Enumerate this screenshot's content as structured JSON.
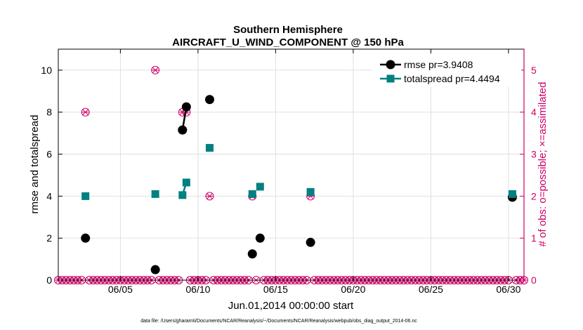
{
  "chart_data": {
    "type": "scatter",
    "title_line1": "Southern Hemisphere",
    "title_line2": "AIRCRAFT_U_WIND_COMPONENT @ 150 hPa",
    "xlabel": "Jun.01,2014 00:00:00 start",
    "ylabel_left": "rmse and totalspread",
    "ylabel_right": "# of obs: o=possible; ×=assimilated",
    "footnote": "data file: /Users/gharamti/Documents/NCAR/Reanalysis/~/Documents/NCAR/Reanalysis/webpub/obs_diag_output_2014-06.nc",
    "xlim": [
      1,
      31
    ],
    "ylim_left": [
      0,
      11
    ],
    "ylim_right": [
      0,
      5.5
    ],
    "x_ticks": [
      5,
      10,
      15,
      20,
      25,
      30
    ],
    "x_tick_labels": [
      "06/05",
      "06/10",
      "06/15",
      "06/20",
      "06/25",
      "06/30"
    ],
    "y_ticks_left": [
      0,
      2,
      4,
      6,
      8,
      10
    ],
    "y_ticks_right": [
      0,
      1,
      2,
      3,
      4,
      5
    ],
    "colors": {
      "rmse": "#000000",
      "totalspread": "#008080",
      "obs": "#cc0066",
      "grid": "#e0e0e0"
    },
    "series": [
      {
        "name": "rmse",
        "legend": "rmse pr=3.9408",
        "points": [
          [
            2.75,
            2.0
          ],
          [
            7.25,
            0.5
          ],
          [
            9.0,
            7.15
          ],
          [
            9.25,
            8.25
          ],
          [
            10.75,
            8.6
          ],
          [
            13.5,
            1.25
          ],
          [
            14.0,
            2.0
          ],
          [
            17.25,
            1.8
          ],
          [
            30.25,
            3.95
          ]
        ],
        "segments": [
          [
            [
              9.0,
              7.15
            ],
            [
              9.25,
              8.25
            ]
          ]
        ]
      },
      {
        "name": "totalspread",
        "legend": "totalspread pr=4.4494",
        "points": [
          [
            2.75,
            4.0
          ],
          [
            7.25,
            4.1
          ],
          [
            9.0,
            4.05
          ],
          [
            9.25,
            4.65
          ],
          [
            10.75,
            6.3
          ],
          [
            13.5,
            4.1
          ],
          [
            14.0,
            4.45
          ],
          [
            17.25,
            4.2
          ],
          [
            30.25,
            4.1
          ]
        ],
        "segments": [
          [
            [
              9.0,
              4.05
            ],
            [
              9.25,
              4.65
            ]
          ]
        ]
      }
    ],
    "obs_counts": {
      "x_start": 1.0,
      "x_step": 0.25,
      "x_end": 31.0,
      "nonzero": [
        [
          2.75,
          4
        ],
        [
          7.25,
          5
        ],
        [
          9.0,
          4
        ],
        [
          9.25,
          4
        ],
        [
          10.75,
          2
        ],
        [
          13.5,
          2
        ],
        [
          14.0,
          1
        ],
        [
          17.25,
          2
        ],
        [
          30.25,
          2
        ]
      ]
    }
  }
}
